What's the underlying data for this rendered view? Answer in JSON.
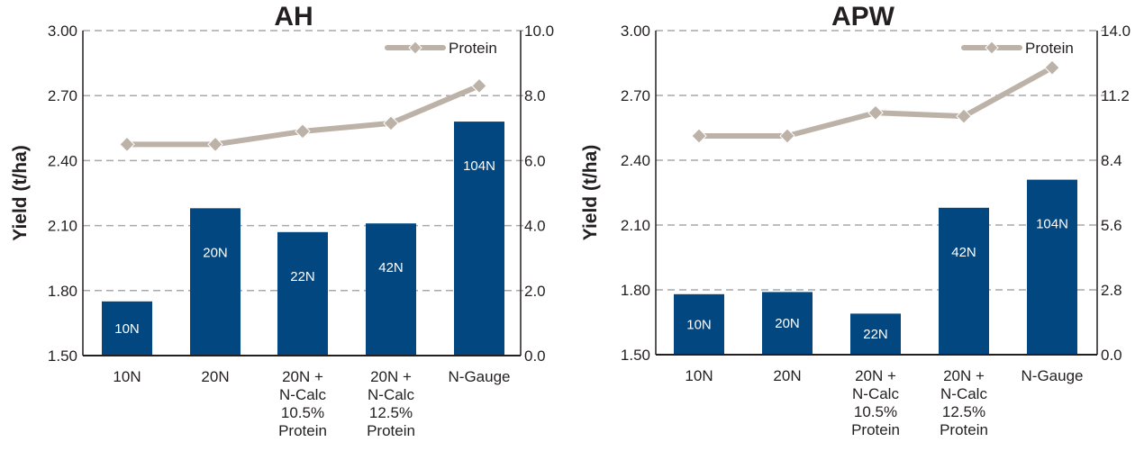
{
  "chart_data": [
    {
      "type": "bar",
      "title": "AH",
      "ylabel": "Yield (t/ha)",
      "ylim": [
        1.5,
        3.0
      ],
      "yticks": [
        "1.50",
        "1.80",
        "2.10",
        "2.40",
        "2.70",
        "3.00"
      ],
      "y2lim": [
        0,
        10
      ],
      "y2ticks": [
        "0.0",
        "2.0",
        "4.0",
        "6.0",
        "8.0",
        "10.0"
      ],
      "grid": true,
      "legend_position": "top-right",
      "categories": [
        [
          "10N"
        ],
        [
          "20N"
        ],
        [
          "20N +",
          "N-Calc",
          "10.5%",
          "Protein"
        ],
        [
          "20N +",
          "N-Calc",
          "12.5%",
          "Protein"
        ],
        [
          "N-Gauge"
        ]
      ],
      "series": [
        {
          "name": "Yield",
          "type": "bar",
          "values": [
            1.75,
            2.18,
            2.07,
            2.11,
            2.58
          ],
          "labels": [
            "10N",
            "20N",
            "22N",
            "42N",
            "104N"
          ],
          "color": "#024780"
        },
        {
          "name": "Protein",
          "type": "line",
          "axis": "right",
          "values": [
            6.5,
            6.5,
            6.9,
            7.15,
            8.3
          ],
          "color": "#bcb2a8"
        }
      ]
    },
    {
      "type": "bar",
      "title": "APW",
      "ylabel": "Yield (t/ha)",
      "ylim": [
        1.5,
        3.0
      ],
      "yticks": [
        "1.50",
        "1.80",
        "2.10",
        "2.40",
        "2.70",
        "3.00"
      ],
      "y2lim": [
        0,
        14
      ],
      "y2ticks": [
        "0.0",
        "2.8",
        "5.6",
        "8.4",
        "11.2",
        "14.0"
      ],
      "grid": true,
      "legend_position": "top-right",
      "categories": [
        [
          "10N"
        ],
        [
          "20N"
        ],
        [
          "20N +",
          "N-Calc",
          "10.5%",
          "Protein"
        ],
        [
          "20N +",
          "N-Calc",
          "12.5%",
          "Protein"
        ],
        [
          "N-Gauge"
        ]
      ],
      "series": [
        {
          "name": "Yield",
          "type": "bar",
          "values": [
            1.78,
            1.79,
            1.69,
            2.18,
            2.31
          ],
          "labels": [
            "10N",
            "20N",
            "22N",
            "42N",
            "104N"
          ],
          "color": "#024780"
        },
        {
          "name": "Protein",
          "type": "line",
          "axis": "right",
          "values": [
            9.45,
            9.45,
            10.45,
            10.3,
            12.4
          ],
          "color": "#bcb2a8"
        }
      ]
    }
  ]
}
